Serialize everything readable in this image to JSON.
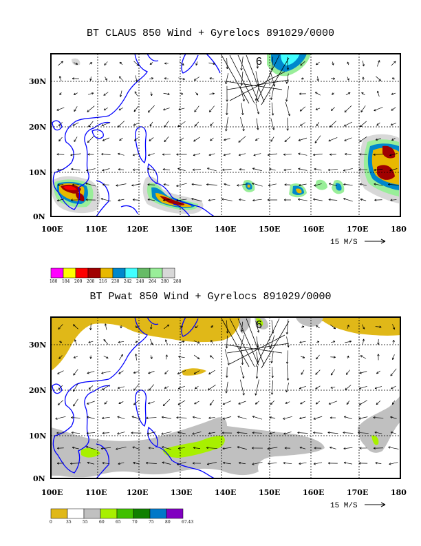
{
  "panel1": {
    "title": "BT CLAUS 850 Wind + Gyrelocs 891029/0000",
    "lat_labels": [
      "30N",
      "20N",
      "10N",
      "0N"
    ],
    "lon_labels": [
      "100E",
      "110E",
      "120E",
      "130E",
      "140E",
      "150E",
      "160E",
      "170E",
      "180"
    ],
    "ref_vector": "15 M/S",
    "storm_marker": "6",
    "legend": {
      "labels": [
        "180",
        "184",
        "200",
        "208",
        "216",
        "230",
        "242",
        "248",
        "264",
        "280",
        "288"
      ],
      "colors": [
        "#ff00ff",
        "#ffff00",
        "#ff0000",
        "#a00000",
        "#e8b800",
        "#0088cc",
        "#40ffff",
        "#66bb66",
        "#99ee99",
        "#d8d8d8"
      ]
    }
  },
  "panel2": {
    "title": "BT Pwat 850 Wind + Gyrelocs 891029/0000",
    "lat_labels": [
      "30N",
      "20N",
      "10N",
      "0N"
    ],
    "lon_labels": [
      "100E",
      "110E",
      "120E",
      "130E",
      "140E",
      "150E",
      "160E",
      "170E",
      "180"
    ],
    "ref_vector": "15 M/S",
    "storm_marker": "6",
    "legend": {
      "labels": [
        "0",
        "35",
        "55",
        "60",
        "65",
        "70",
        "75",
        "80",
        "67.43"
      ],
      "colors": [
        "#e0b818",
        "#ffffff",
        "#c0c0c0",
        "#a8f000",
        "#40c000",
        "#108000",
        "#0078c8",
        "#8000c0"
      ]
    }
  }
}
